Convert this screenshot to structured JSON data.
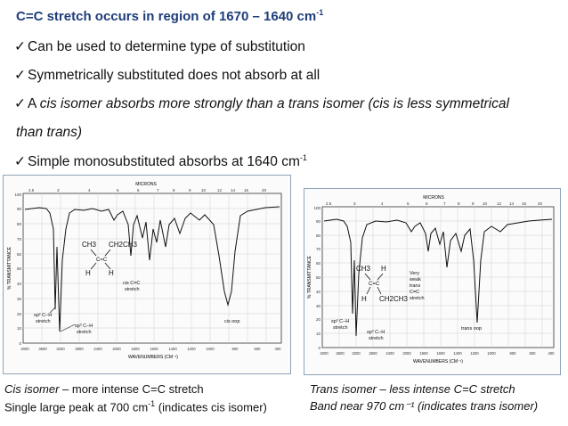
{
  "heading": {
    "text": "C=C stretch occurs in region of 1670 – 1640 cm",
    "sup": "-1",
    "color": "#1f3d7a"
  },
  "bullets": [
    {
      "check": "✓",
      "text": "Can be used to determine type of substitution"
    },
    {
      "check": "✓",
      "text": "Symmetrically substituted does not absorb at all"
    },
    {
      "check": "✓",
      "text_a": "A ",
      "text_b": "cis isomer absorbs more strongly than a trans isomer  (cis is less symmetrical",
      "text_c": "than trans)"
    },
    {
      "check": "✓",
      "text": "Simple monosubstituted absorbs at 1640 cm",
      "sup": "-1"
    }
  ],
  "spectrum_left": {
    "x_axis_label": "WAVENUMBERS (CM⁻¹)",
    "y_axis_label": "% TRANSMITTANCE",
    "x_ticks": [
      "4000",
      "3600",
      "3200",
      "2800",
      "2400",
      "2000",
      "1800",
      "1600",
      "1400",
      "1200",
      "1000",
      "800",
      "600",
      "400"
    ],
    "top_label": "MICRONS",
    "structure": [
      "CH3",
      "CH2CH3",
      "H",
      "H",
      "C=C"
    ],
    "annotations": [
      "cis C=C",
      "stretch",
      "cis oop",
      "sp² C–H",
      "stretch",
      "sp³ C–H",
      "stretch"
    ]
  },
  "spectrum_right": {
    "x_axis_label": "WAVENUMBERS (CM⁻¹)",
    "y_axis_label": "% TRANSMITTANCE",
    "x_ticks": [
      "4000",
      "3600",
      "3200",
      "2800",
      "2400",
      "2000",
      "1800",
      "1600",
      "1400",
      "1200",
      "1000",
      "800",
      "600",
      "400"
    ],
    "top_label": "MICRONS",
    "structure": [
      "CH3",
      "H",
      "H",
      "CH2CH3",
      "C=C"
    ],
    "annotations": [
      "Very",
      "weak",
      "trans",
      "C=C",
      "stretch",
      "trans oop",
      "sp² C–H",
      "stretch",
      "sp³ C–H",
      "stretch"
    ]
  },
  "captions": {
    "left_line1_italic": "Cis isomer",
    "left_line1_rest": " – more intense C=C stretch",
    "left_line2_a": "Single large peak at 700 cm",
    "left_line2_sup": "-1",
    "left_line2_b": " (indicates cis isomer)",
    "right_line1": "Trans isomer – less intense C=C stretch",
    "right_line2": "Band near 970 cm⁻¹ (indicates trans isomer)"
  }
}
